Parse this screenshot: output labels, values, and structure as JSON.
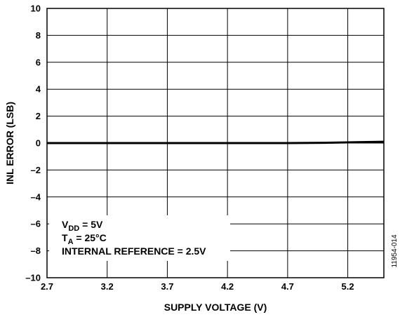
{
  "chart_data": {
    "type": "line",
    "xlabel": "SUPPLY VOLTAGE (V)",
    "ylabel": "INL ERROR (LSB)",
    "xlim": [
      2.7,
      5.5
    ],
    "ylim": [
      -10,
      10
    ],
    "xticks": [
      2.7,
      3.2,
      3.7,
      4.2,
      4.7,
      5.2
    ],
    "xtick_labels": [
      "2.7",
      "3.2",
      "3.7",
      "4.2",
      "4.7",
      "5.2"
    ],
    "yticks": [
      10,
      8,
      6,
      4,
      2,
      0,
      -2,
      -4,
      -6,
      -8,
      -10
    ],
    "ytick_labels": [
      "10",
      "8",
      "6",
      "4",
      "2",
      "0",
      "–2",
      "–4",
      "–6",
      "–8",
      "–10"
    ],
    "grid": true,
    "series": [
      {
        "x": [
          2.7,
          3.2,
          3.7,
          4.2,
          4.7,
          5.0,
          5.2,
          5.5
        ],
        "values": [
          0.0,
          0.0,
          0.0,
          0.0,
          0.0,
          0.02,
          0.05,
          0.1
        ]
      }
    ],
    "annotations": [
      {
        "main": "V",
        "sub": "DD",
        "rest": " = 5V"
      },
      {
        "main": "T",
        "sub": "A",
        "rest": " = 25°C"
      },
      {
        "main": "INTERNAL REFERENCE = 2.5V",
        "sub": "",
        "rest": ""
      }
    ],
    "figure_id": "11954-014"
  }
}
